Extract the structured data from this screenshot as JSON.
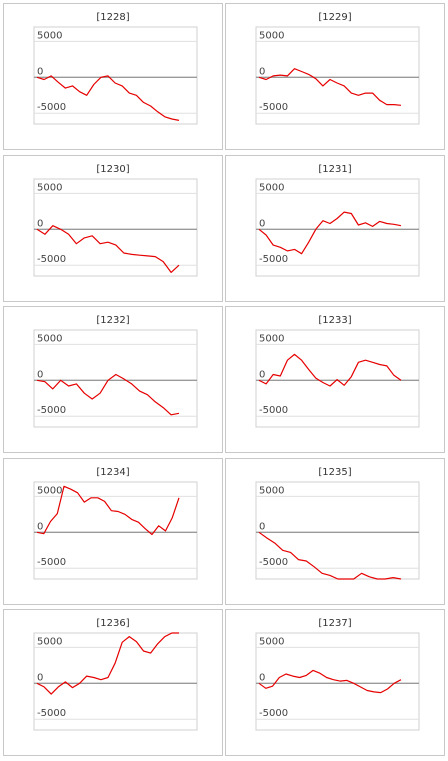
{
  "chart_data": [
    {
      "type": "line",
      "title": "[1228]",
      "ylim": [
        -6500,
        7000
      ],
      "yticks": [
        {
          "value": 5000,
          "label": "5000"
        },
        {
          "value": 0,
          "label": "0"
        },
        {
          "value": -5000,
          "label": "-5000"
        }
      ],
      "series": [
        {
          "values": [
            0,
            -300,
            200,
            -700,
            -1500,
            -1200,
            -2000,
            -2500,
            -1000,
            0,
            200,
            -800,
            -1200,
            -2200,
            -2500,
            -3500,
            -4000,
            -4800,
            -5500,
            -5800,
            -6000
          ]
        }
      ]
    },
    {
      "type": "line",
      "title": "[1229]",
      "ylim": [
        -6500,
        7000
      ],
      "yticks": [
        {
          "value": 5000,
          "label": "5000"
        },
        {
          "value": 0,
          "label": "0"
        },
        {
          "value": -5000,
          "label": "-5000"
        }
      ],
      "series": [
        {
          "values": [
            0,
            -300,
            200,
            300,
            200,
            1200,
            800,
            400,
            -200,
            -1200,
            -300,
            -800,
            -1200,
            -2200,
            -2500,
            -2200,
            -2200,
            -3200,
            -3800,
            -3800,
            -3900
          ]
        }
      ]
    },
    {
      "type": "line",
      "title": "[1230]",
      "ylim": [
        -6500,
        7000
      ],
      "yticks": [
        {
          "value": 5000,
          "label": "5000"
        },
        {
          "value": 0,
          "label": "0"
        },
        {
          "value": -5000,
          "label": "-5000"
        }
      ],
      "series": [
        {
          "values": [
            0,
            -700,
            500,
            0,
            -700,
            -2000,
            -1200,
            -900,
            -2000,
            -1800,
            -2200,
            -3300,
            -3500,
            -3600,
            -3700,
            -3800,
            -4500,
            -6000,
            -5000
          ]
        }
      ]
    },
    {
      "type": "line",
      "title": "[1231]",
      "ylim": [
        -6500,
        7000
      ],
      "yticks": [
        {
          "value": 5000,
          "label": "5000"
        },
        {
          "value": 0,
          "label": "0"
        },
        {
          "value": -5000,
          "label": "-5000"
        }
      ],
      "series": [
        {
          "values": [
            0,
            -800,
            -2200,
            -2500,
            -3000,
            -2800,
            -3400,
            -1800,
            0,
            1200,
            800,
            1500,
            2400,
            2200,
            600,
            900,
            400,
            1100,
            800,
            700,
            500
          ]
        }
      ]
    },
    {
      "type": "line",
      "title": "[1232]",
      "ylim": [
        -6500,
        7000
      ],
      "yticks": [
        {
          "value": 5000,
          "label": "5000"
        },
        {
          "value": 0,
          "label": "0"
        },
        {
          "value": -5000,
          "label": "-5000"
        }
      ],
      "series": [
        {
          "values": [
            0,
            -200,
            -1200,
            0,
            -800,
            -500,
            -1800,
            -2600,
            -1800,
            0,
            800,
            200,
            -500,
            -1500,
            -2000,
            -3000,
            -3800,
            -4800,
            -4600
          ]
        }
      ]
    },
    {
      "type": "line",
      "title": "[1233]",
      "ylim": [
        -6500,
        7000
      ],
      "yticks": [
        {
          "value": 5000,
          "label": "5000"
        },
        {
          "value": 0,
          "label": "0"
        },
        {
          "value": -5000,
          "label": "-5000"
        }
      ],
      "series": [
        {
          "values": [
            0,
            -500,
            800,
            600,
            2800,
            3600,
            2800,
            1500,
            300,
            -300,
            -800,
            100,
            -700,
            500,
            2500,
            2800,
            2500,
            2200,
            2000,
            700,
            0
          ]
        }
      ]
    },
    {
      "type": "line",
      "title": "[1234]",
      "ylim": [
        -6500,
        7000
      ],
      "yticks": [
        {
          "value": 5000,
          "label": "5000"
        },
        {
          "value": 0,
          "label": "0"
        },
        {
          "value": -5000,
          "label": "-5000"
        }
      ],
      "series": [
        {
          "values": [
            0,
            -200,
            1500,
            2600,
            6400,
            6000,
            5500,
            4200,
            4800,
            4800,
            4300,
            3000,
            2900,
            2500,
            1800,
            1400,
            500,
            -300,
            900,
            200,
            2000,
            4800
          ]
        }
      ]
    },
    {
      "type": "line",
      "title": "[1235]",
      "ylim": [
        -6500,
        7000
      ],
      "yticks": [
        {
          "value": 5000,
          "label": "5000"
        },
        {
          "value": 0,
          "label": "0"
        },
        {
          "value": -5000,
          "label": "-5000"
        }
      ],
      "series": [
        {
          "values": [
            0,
            -800,
            -1500,
            -2500,
            -2800,
            -3800,
            -4000,
            -4800,
            -5700,
            -6000,
            -6800,
            -7200,
            -6500,
            -5700,
            -6200,
            -6700,
            -7000,
            -6300,
            -6800
          ]
        }
      ]
    },
    {
      "type": "line",
      "title": "[1236]",
      "ylim": [
        -6500,
        7000
      ],
      "yticks": [
        {
          "value": 5000,
          "label": "5000"
        },
        {
          "value": 0,
          "label": "0"
        },
        {
          "value": -5000,
          "label": "-5000"
        }
      ],
      "series": [
        {
          "values": [
            0,
            -500,
            -1500,
            -500,
            200,
            -600,
            0,
            1000,
            800,
            500,
            800,
            2800,
            5700,
            6500,
            5800,
            4500,
            4200,
            5500,
            6500,
            7200,
            7000
          ]
        }
      ]
    },
    {
      "type": "line",
      "title": "[1237]",
      "ylim": [
        -6500,
        7000
      ],
      "yticks": [
        {
          "value": 5000,
          "label": "5000"
        },
        {
          "value": 0,
          "label": "0"
        },
        {
          "value": -5000,
          "label": "-5000"
        }
      ],
      "series": [
        {
          "values": [
            0,
            -700,
            -400,
            800,
            1300,
            1000,
            800,
            1100,
            1800,
            1400,
            800,
            500,
            300,
            400,
            0,
            -500,
            -1000,
            -1200,
            -1300,
            -800,
            0,
            500
          ]
        }
      ]
    }
  ]
}
